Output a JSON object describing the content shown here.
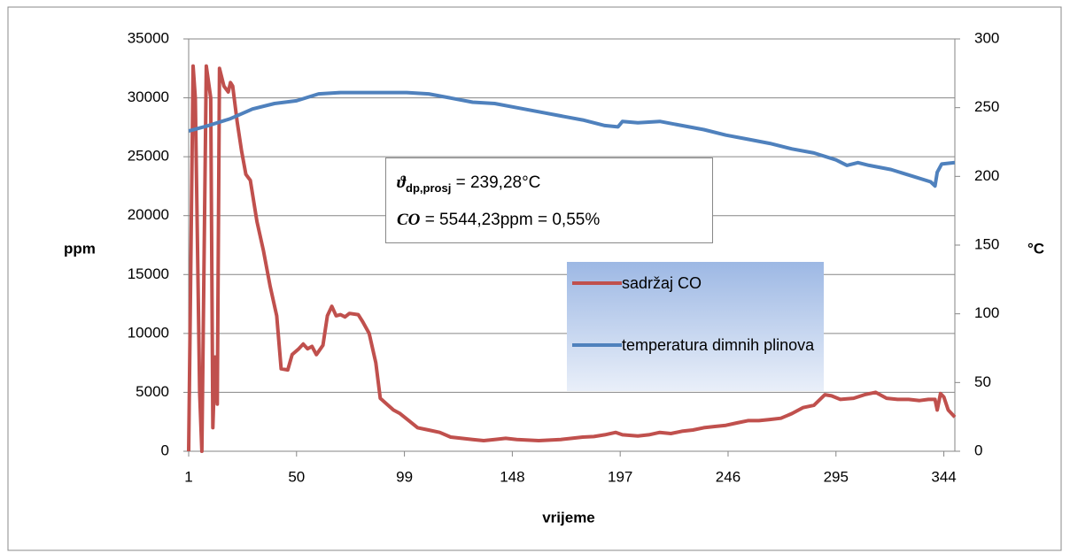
{
  "chart_data": {
    "type": "line",
    "xlabel": "vrijeme",
    "ylabel": "ppm",
    "y2label": "°C",
    "xlim": [
      1,
      349
    ],
    "ylim": [
      0,
      35000
    ],
    "y2lim": [
      0,
      300
    ],
    "xticks": [
      1,
      50,
      99,
      148,
      197,
      246,
      295,
      344
    ],
    "yticks": [
      0,
      5000,
      10000,
      15000,
      20000,
      25000,
      30000,
      35000
    ],
    "y2ticks": [
      0,
      50,
      100,
      150,
      200,
      250,
      300
    ],
    "grid": true,
    "annotation": [
      {
        "symbol": "ϑ",
        "subscript": "dp,prosj",
        "text": "= 239,28°C"
      },
      {
        "symbol": "CO",
        "text": "= 5544,23ppm = 0,55%"
      }
    ],
    "series": [
      {
        "name": "sadržaj CO",
        "color": "#c0504d",
        "axis": "y",
        "x": [
          1,
          3,
          4,
          6,
          7,
          9,
          11,
          12,
          13,
          14,
          15,
          17,
          19,
          20,
          21,
          23,
          25,
          27,
          29,
          32,
          35,
          38,
          41,
          43,
          46,
          48,
          51,
          53,
          55,
          57,
          59,
          62,
          64,
          66,
          68,
          70,
          72,
          74,
          78,
          80,
          83,
          86,
          88,
          91,
          94,
          97,
          101,
          105,
          110,
          115,
          120,
          125,
          130,
          135,
          140,
          145,
          150,
          155,
          160,
          165,
          170,
          175,
          180,
          185,
          190,
          195,
          198,
          205,
          210,
          215,
          220,
          225,
          230,
          235,
          240,
          245,
          250,
          255,
          260,
          265,
          270,
          275,
          280,
          285,
          290,
          293,
          297,
          303,
          308,
          313,
          318,
          323,
          328,
          333,
          337,
          340,
          341,
          342.5,
          344,
          346,
          349
        ],
        "values": [
          0,
          32700,
          30000,
          5000,
          0,
          32700,
          30000,
          2000,
          8000,
          4000,
          32500,
          31000,
          30500,
          31300,
          31000,
          28000,
          25500,
          23500,
          23000,
          19500,
          17000,
          14000,
          11500,
          7000,
          6900,
          8200,
          8700,
          9100,
          8700,
          8900,
          8200,
          9000,
          11500,
          12300,
          11500,
          11600,
          11400,
          11700,
          11600,
          11000,
          10000,
          7500,
          4500,
          4000,
          3500,
          3200,
          2600,
          2000,
          1800,
          1600,
          1200,
          1100,
          1000,
          900,
          1000,
          1100,
          1000,
          950,
          900,
          950,
          1000,
          1100,
          1200,
          1250,
          1400,
          1600,
          1400,
          1300,
          1400,
          1600,
          1500,
          1700,
          1800,
          2000,
          2100,
          2200,
          2400,
          2600,
          2600,
          2700,
          2800,
          3200,
          3700,
          3900,
          4800,
          4700,
          4400,
          4500,
          4800,
          5000,
          4500,
          4400,
          4400,
          4300,
          4400,
          4400,
          3500,
          4900,
          4600,
          3500,
          2900
        ]
      },
      {
        "name": "temperatura dimnih plinova",
        "color": "#4f81bd",
        "axis": "y2",
        "x": [
          1,
          10,
          20,
          30,
          40,
          50,
          60,
          70,
          80,
          90,
          100,
          110,
          120,
          130,
          140,
          150,
          160,
          170,
          180,
          190,
          196,
          198,
          205,
          215,
          225,
          235,
          245,
          255,
          265,
          275,
          285,
          295,
          300,
          305,
          310,
          320,
          330,
          338,
          340,
          341,
          343,
          349
        ],
        "values": [
          233,
          237,
          242,
          249,
          253,
          255,
          260,
          261,
          261,
          261,
          261,
          260,
          257,
          254,
          253,
          250,
          247,
          244,
          241,
          237,
          236,
          240,
          239,
          240,
          237,
          234,
          230,
          227,
          224,
          220,
          217,
          212,
          208,
          210,
          208,
          205,
          200,
          196,
          193,
          203,
          209,
          210
        ]
      }
    ]
  }
}
